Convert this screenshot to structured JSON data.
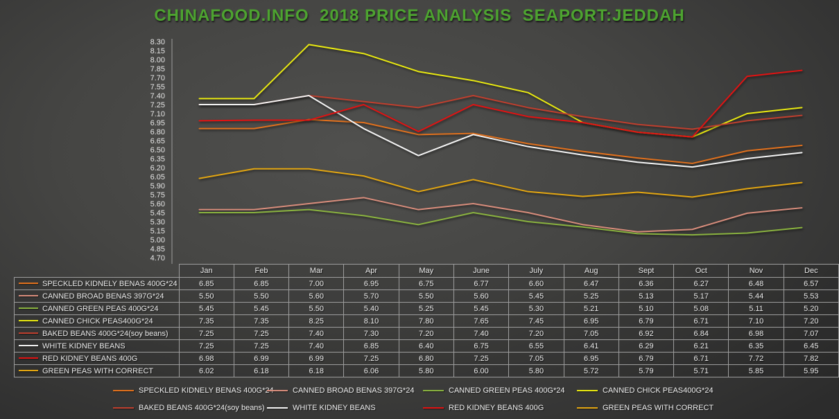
{
  "title": "CHINAFOOD.INFO  2018 PRICE ANALYSIS  SEAPORT:JEDDAH",
  "title_color": "#4da330",
  "text_color": "#e6e6e6",
  "table_border_color": "#9d9d9d",
  "chart_data": {
    "type": "line",
    "title": "CHINAFOOD.INFO  2018 PRICE ANALYSIS  SEAPORT:JEDDAH",
    "categories": [
      "Jan",
      "Feb",
      "Mar",
      "Apr",
      "May",
      "June",
      "July",
      "Aug",
      "Sept",
      "Oct",
      "Nov",
      "Dec"
    ],
    "ylim": [
      4.7,
      8.3
    ],
    "ytick_step": 0.15,
    "grid": false,
    "legend_position": "bottom",
    "data_table_shown": true,
    "series": [
      {
        "name": "SPECKLED KIDNELY BENAS 400G*24",
        "color": "#e2711d",
        "values": [
          6.85,
          6.85,
          7.0,
          6.95,
          6.75,
          6.77,
          6.6,
          6.47,
          6.36,
          6.27,
          6.48,
          6.57
        ]
      },
      {
        "name": "CANNED BROAD BENAS 397G*24",
        "color": "#d98d7c",
        "values": [
          5.5,
          5.5,
          5.6,
          5.7,
          5.5,
          5.6,
          5.45,
          5.25,
          5.13,
          5.17,
          5.44,
          5.53
        ]
      },
      {
        "name": "CANNED GREEN PEAS 400G*24",
        "color": "#8ab33f",
        "values": [
          5.45,
          5.45,
          5.5,
          5.4,
          5.25,
          5.45,
          5.3,
          5.21,
          5.1,
          5.08,
          5.11,
          5.2
        ]
      },
      {
        "name": "CANNED CHICK PEAS400G*24",
        "color": "#eaea10",
        "values": [
          7.35,
          7.35,
          8.25,
          8.1,
          7.8,
          7.65,
          7.45,
          6.95,
          6.79,
          6.71,
          7.1,
          7.2
        ]
      },
      {
        "name": "BAKED BEANS 400G*24(soy beans)",
        "color": "#bf3f2e",
        "values": [
          7.25,
          7.25,
          7.4,
          7.3,
          7.2,
          7.4,
          7.2,
          7.05,
          6.92,
          6.84,
          6.98,
          7.07
        ]
      },
      {
        "name": "WHITE KIDNEY BEANS",
        "color": "#f5f5f5",
        "values": [
          7.25,
          7.25,
          7.4,
          6.85,
          6.4,
          6.75,
          6.55,
          6.41,
          6.29,
          6.21,
          6.35,
          6.45
        ]
      },
      {
        "name": "RED KIDNEY BEANS 400G",
        "color": "#e21212",
        "values": [
          6.98,
          6.99,
          6.99,
          7.25,
          6.8,
          7.25,
          7.05,
          6.95,
          6.79,
          6.71,
          7.72,
          7.82
        ]
      },
      {
        "name": "GREEN PEAS WITH CORRECT",
        "color": "#e3a611",
        "values": [
          6.02,
          6.18,
          6.18,
          6.06,
          5.8,
          6.0,
          5.8,
          5.72,
          5.79,
          5.71,
          5.85,
          5.95
        ]
      }
    ]
  }
}
